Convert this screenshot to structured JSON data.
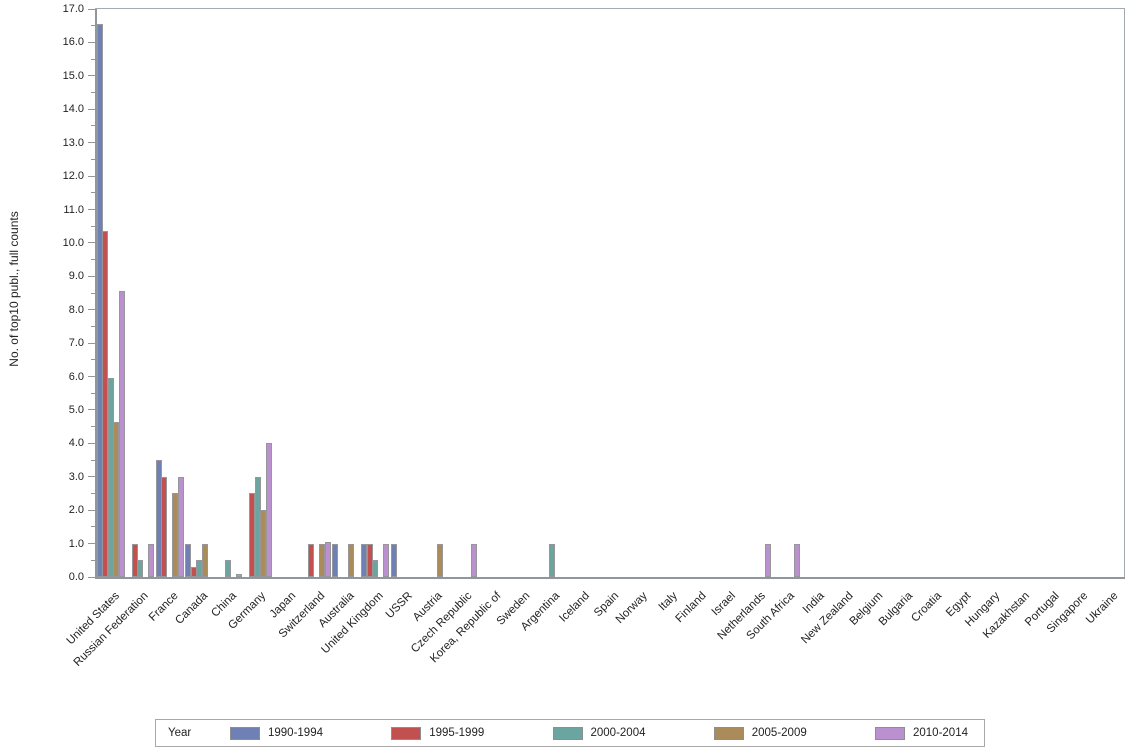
{
  "chart_data": {
    "type": "bar",
    "title": "",
    "xlabel": "",
    "ylabel": "No. of top10 publ., full counts",
    "ylim": [
      0,
      17
    ],
    "ytick_step": 1.0,
    "ytick_labels": [
      "0.0",
      "1.0",
      "2.0",
      "3.0",
      "4.0",
      "5.0",
      "6.0",
      "7.0",
      "8.0",
      "9.0",
      "10.0",
      "11.0",
      "12.0",
      "13.0",
      "14.0",
      "15.0",
      "16.0",
      "17.0"
    ],
    "grid": false,
    "legend_title": "Year",
    "legend_position": "bottom",
    "categories": [
      "United States",
      "Russian Federation",
      "France",
      "Canada",
      "China",
      "Germany",
      "Japan",
      "Switzerland",
      "Australia",
      "United Kingdom",
      "USSR",
      "Austria",
      "Czech Republic",
      "Korea, Republic of",
      "Sweden",
      "Argentina",
      "Iceland",
      "Spain",
      "Norway",
      "Italy",
      "Finland",
      "Israel",
      "Netherlands",
      "South Africa",
      "India",
      "New Zealand",
      "Belgium",
      "Bulgaria",
      "Croatia",
      "Egypt",
      "Hungary",
      "Kazakhstan",
      "Portugal",
      "Singapore",
      "Ukraine"
    ],
    "series": [
      {
        "name": "1990-1994",
        "color": "#6f80b4",
        "values": [
          16.55,
          0,
          3.5,
          1,
          0,
          0,
          0,
          0,
          1,
          1,
          1,
          0,
          0,
          0,
          0,
          0,
          0,
          0,
          0,
          0,
          0,
          0,
          0,
          0,
          0,
          0,
          0,
          0,
          0,
          0,
          0,
          0,
          0,
          0,
          0
        ]
      },
      {
        "name": "1995-1999",
        "color": "#c1504e",
        "values": [
          10.35,
          1,
          3,
          0.3,
          0,
          2.5,
          0,
          1,
          0,
          1,
          0,
          0,
          0,
          0,
          0,
          0,
          0,
          0,
          0,
          0,
          0,
          0,
          0,
          0,
          0,
          0,
          0,
          0,
          0,
          0,
          0,
          0,
          0,
          0,
          0
        ]
      },
      {
        "name": "2000-2004",
        "color": "#6aa69f",
        "values": [
          5.95,
          0.5,
          0,
          0.5,
          0.5,
          3,
          0,
          0,
          0,
          0.5,
          0,
          0,
          0,
          0,
          0,
          1,
          0,
          0,
          0,
          0,
          0,
          0,
          0,
          0,
          0,
          0,
          0,
          0,
          0,
          0,
          0,
          0,
          0,
          0,
          0
        ]
      },
      {
        "name": "2005-2009",
        "color": "#ab8b5a",
        "values": [
          4.65,
          0,
          2.5,
          1,
          0,
          2,
          0,
          1,
          1,
          0,
          0,
          1,
          0,
          0,
          0,
          0,
          0,
          0,
          0,
          0,
          0,
          0,
          0,
          0,
          0,
          0,
          0,
          0,
          0,
          0,
          0,
          0,
          0,
          0,
          0
        ]
      },
      {
        "name": "2010-2014",
        "color": "#ba90cf",
        "values": [
          8.55,
          1,
          3,
          0,
          0.1,
          4,
          0,
          1.05,
          0,
          1,
          0,
          0,
          1,
          0,
          0,
          0,
          0,
          0,
          0,
          0,
          0,
          0,
          1,
          1,
          0,
          0,
          0,
          0,
          0,
          0,
          0,
          0,
          0,
          0,
          0
        ]
      }
    ],
    "style": {
      "bar_border_color": "#97979b",
      "axis_color": "#8f979d",
      "frame_color": "#a3aab0",
      "text_color": "#232323"
    }
  }
}
